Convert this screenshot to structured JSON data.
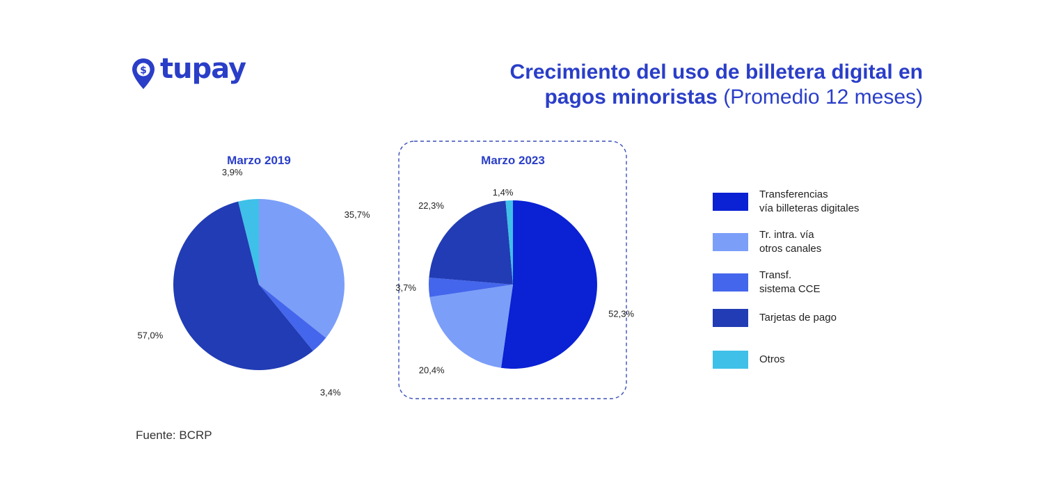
{
  "logo": {
    "text": "tupay",
    "icon": "location-pin-dollar-icon",
    "color": "#2a3ec8"
  },
  "title": {
    "bold_line1": "Crecimiento del uso de billetera digital en",
    "bold_line2": "pagos minoristas",
    "light_part": "(Promedio 12 meses)"
  },
  "legend": [
    {
      "label": "Transferencias\nvía billeteras digitales",
      "color": "#0a21d4"
    },
    {
      "label": "Tr. intra. vía\notros canales",
      "color": "#7b9ef8"
    },
    {
      "label": "Transf.\nsistema CCE",
      "color": "#4466ec"
    },
    {
      "label": "Tarjetas de pago",
      "color": "#213cb4"
    },
    {
      "label": "Otros",
      "color": "#3fc0e8"
    }
  ],
  "chart_data": [
    {
      "type": "pie",
      "title": "Marzo 2019",
      "slices": [
        {
          "legend": "Tr. intra. vía otros canales",
          "value": 35.7,
          "label": "35,7%",
          "color": "#7b9ef8"
        },
        {
          "legend": "Transf. sistema CCE",
          "value": 3.4,
          "label": "3,4%",
          "color": "#4466ec"
        },
        {
          "legend": "Tarjetas de pago",
          "value": 57.0,
          "label": "57,0%",
          "color": "#213cb4"
        },
        {
          "legend": "Otros",
          "value": 3.9,
          "label": "3,9%",
          "color": "#3fc0e8"
        }
      ]
    },
    {
      "type": "pie",
      "title": "Marzo 2023",
      "highlighted": true,
      "slices": [
        {
          "legend": "Transferencias vía billeteras digitales",
          "value": 52.3,
          "label": "52,3%",
          "color": "#0a21d4"
        },
        {
          "legend": "Tr. intra. vía otros canales",
          "value": 20.4,
          "label": "20,4%",
          "color": "#7b9ef8"
        },
        {
          "legend": "Transf. sistema CCE",
          "value": 3.7,
          "label": "3,7%",
          "color": "#4466ec"
        },
        {
          "legend": "Tarjetas de pago",
          "value": 22.3,
          "label": "22,3%",
          "color": "#213cb4"
        },
        {
          "legend": "Otros",
          "value": 1.4,
          "label": "1,4%",
          "color": "#3fc0e8"
        }
      ]
    }
  ],
  "source": "Fuente: BCRP"
}
